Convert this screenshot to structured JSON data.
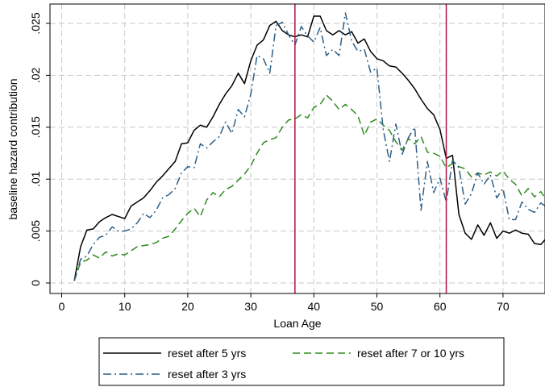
{
  "chart_data": {
    "type": "line",
    "xlabel": "Loan Age",
    "ylabel": "baseline hazard contribution",
    "xlim": [
      0,
      77
    ],
    "ylim": [
      0,
      0.026
    ],
    "x_ticks": [
      0,
      10,
      20,
      30,
      40,
      50,
      60,
      70
    ],
    "x_tick_labels": [
      "0",
      "10",
      "20",
      "30",
      "40",
      "50",
      "60",
      "70"
    ],
    "y_ticks": [
      0,
      0.005,
      0.01,
      0.015,
      0.02,
      0.025
    ],
    "y_tick_labels": [
      "0",
      ".005",
      ".01",
      ".015",
      ".02",
      ".025"
    ],
    "grid": true,
    "vlines": [
      {
        "x": 37,
        "color": "#b5103c"
      },
      {
        "x": 61,
        "color": "#b5103c"
      }
    ],
    "legend": {
      "placement": "bottom",
      "entries": [
        {
          "series": 0,
          "label": "reset after 5 yrs"
        },
        {
          "series": 1,
          "label": "reset after 7 or 10 yrs"
        },
        {
          "series": 2,
          "label": "reset after 3 yrs"
        }
      ]
    },
    "series": [
      {
        "name": "reset after 5 yrs",
        "color": "#000000",
        "dash": "solid",
        "x": [
          2,
          3,
          4,
          5,
          6,
          7,
          8,
          9,
          10,
          11,
          12,
          13,
          14,
          15,
          16,
          17,
          18,
          19,
          20,
          21,
          22,
          23,
          24,
          25,
          26,
          27,
          28,
          29,
          30,
          31,
          32,
          33,
          34,
          35,
          36,
          37,
          38,
          39,
          40,
          41,
          42,
          43,
          44,
          45,
          46,
          47,
          48,
          49,
          50,
          51,
          52,
          53,
          54,
          55,
          56,
          57,
          58,
          59,
          60,
          61,
          62,
          63,
          64,
          65,
          66,
          67,
          68,
          69,
          70,
          71,
          72,
          73,
          74,
          75,
          76,
          77
        ],
        "y": [
          0.0002,
          0.0035,
          0.0051,
          0.0052,
          0.0059,
          0.0063,
          0.0066,
          0.0064,
          0.0062,
          0.0074,
          0.0078,
          0.0082,
          0.0089,
          0.0097,
          0.0103,
          0.011,
          0.0117,
          0.0134,
          0.0135,
          0.0147,
          0.0152,
          0.015,
          0.016,
          0.0172,
          0.0182,
          0.019,
          0.0202,
          0.0192,
          0.0214,
          0.0229,
          0.0234,
          0.0248,
          0.0252,
          0.0243,
          0.0239,
          0.0237,
          0.0239,
          0.0237,
          0.0257,
          0.0257,
          0.0243,
          0.0239,
          0.0243,
          0.0239,
          0.0242,
          0.0231,
          0.0235,
          0.0223,
          0.0216,
          0.0214,
          0.0209,
          0.0208,
          0.0202,
          0.0195,
          0.0187,
          0.0177,
          0.0168,
          0.0162,
          0.0148,
          0.012,
          0.0123,
          0.0066,
          0.0048,
          0.0042,
          0.0056,
          0.0046,
          0.0058,
          0.0043,
          0.005,
          0.0048,
          0.0051,
          0.0048,
          0.0047,
          0.0038,
          0.0037,
          0.0044
        ]
      },
      {
        "name": "reset after 7 or 10 yrs",
        "color": "#2e8b1f",
        "dash": "long-dash",
        "x": [
          2,
          3,
          4,
          5,
          6,
          7,
          8,
          9,
          10,
          11,
          12,
          13,
          14,
          15,
          16,
          17,
          18,
          19,
          20,
          21,
          22,
          23,
          24,
          25,
          26,
          27,
          28,
          29,
          30,
          31,
          32,
          33,
          34,
          35,
          36,
          37,
          38,
          39,
          40,
          41,
          42,
          43,
          44,
          45,
          46,
          47,
          48,
          49,
          50,
          51,
          52,
          53,
          54,
          55,
          56,
          57,
          58,
          59,
          60,
          61,
          62,
          63,
          64,
          65,
          66,
          67,
          68,
          69,
          70,
          71,
          72,
          73,
          74,
          75,
          76,
          77
        ],
        "y": [
          0.0002,
          0.002,
          0.0022,
          0.0027,
          0.0024,
          0.003,
          0.0026,
          0.0028,
          0.0027,
          0.0031,
          0.0035,
          0.0036,
          0.0037,
          0.0039,
          0.0043,
          0.0045,
          0.0052,
          0.006,
          0.0067,
          0.0072,
          0.0064,
          0.008,
          0.0087,
          0.0083,
          0.009,
          0.0093,
          0.0099,
          0.0105,
          0.0113,
          0.0125,
          0.0135,
          0.0138,
          0.014,
          0.015,
          0.0157,
          0.0158,
          0.0162,
          0.0159,
          0.0169,
          0.0172,
          0.0181,
          0.0175,
          0.0167,
          0.0172,
          0.0167,
          0.0161,
          0.0142,
          0.0155,
          0.0158,
          0.0152,
          0.0147,
          0.0136,
          0.0128,
          0.0139,
          0.0134,
          0.0141,
          0.0126,
          0.0125,
          0.0122,
          0.0111,
          0.0115,
          0.0112,
          0.011,
          0.0102,
          0.0106,
          0.0104,
          0.0107,
          0.0103,
          0.0108,
          0.01,
          0.0095,
          0.0084,
          0.0091,
          0.0083,
          0.0088,
          0.0079
        ]
      },
      {
        "name": "reset after 3 yrs",
        "color": "#2d5f86",
        "dash": "dash-dot",
        "x": [
          2,
          3,
          4,
          5,
          6,
          7,
          8,
          9,
          10,
          11,
          12,
          13,
          14,
          15,
          16,
          17,
          18,
          19,
          20,
          21,
          22,
          23,
          24,
          25,
          26,
          27,
          28,
          29,
          30,
          31,
          32,
          33,
          34,
          35,
          36,
          37,
          38,
          39,
          40,
          41,
          42,
          43,
          44,
          45,
          46,
          47,
          48,
          49,
          50,
          51,
          52,
          53,
          54,
          55,
          56,
          57,
          58,
          59,
          60,
          61,
          62,
          63,
          64,
          65,
          66,
          67,
          68,
          69,
          70,
          71,
          72,
          73,
          74,
          75,
          76,
          77
        ],
        "y": [
          0.0002,
          0.0023,
          0.0026,
          0.0037,
          0.0044,
          0.0046,
          0.0054,
          0.005,
          0.005,
          0.0052,
          0.0058,
          0.0067,
          0.0063,
          0.007,
          0.0082,
          0.0085,
          0.0091,
          0.0106,
          0.0112,
          0.0111,
          0.0134,
          0.013,
          0.0136,
          0.0141,
          0.0155,
          0.0144,
          0.0167,
          0.016,
          0.0182,
          0.0219,
          0.0216,
          0.0202,
          0.0248,
          0.0251,
          0.0239,
          0.0229,
          0.0247,
          0.0238,
          0.0232,
          0.0246,
          0.0219,
          0.0225,
          0.0219,
          0.026,
          0.0233,
          0.0223,
          0.0225,
          0.0203,
          0.0207,
          0.0148,
          0.0117,
          0.0153,
          0.0124,
          0.014,
          0.015,
          0.007,
          0.0117,
          0.0087,
          0.0101,
          0.0078,
          0.0118,
          0.0111,
          0.0076,
          0.0086,
          0.0106,
          0.0095,
          0.0104,
          0.0082,
          0.0091,
          0.0061,
          0.0061,
          0.0078,
          0.0071,
          0.0068,
          0.0077,
          0.0073
        ]
      }
    ]
  }
}
